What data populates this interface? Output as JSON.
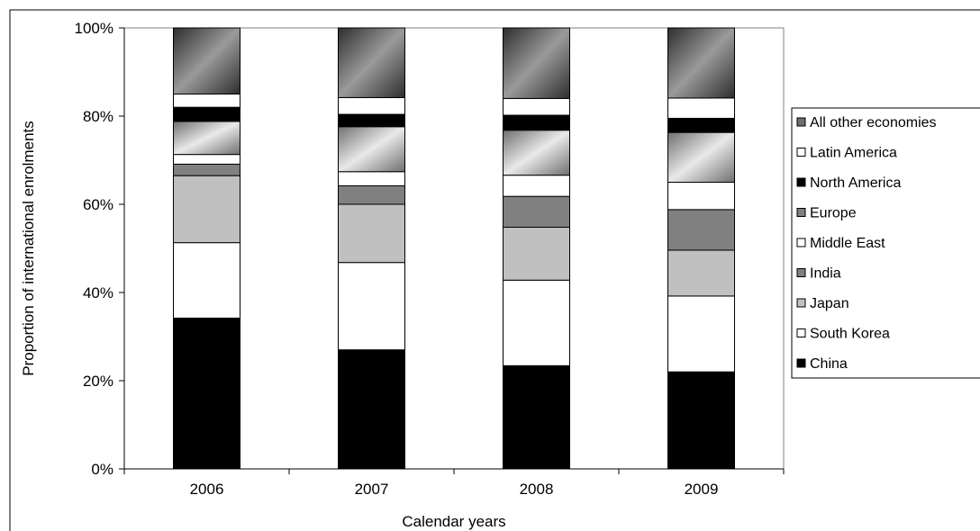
{
  "chart_data": {
    "type": "bar",
    "stacked": true,
    "title": "",
    "xlabel": "Calendar years",
    "ylabel": "Proportion of international enrolments",
    "ylim": [
      0,
      100
    ],
    "yticks": [
      "0%",
      "20%",
      "40%",
      "60%",
      "80%",
      "100%"
    ],
    "grid": false,
    "legend_position": "right",
    "categories": [
      "2006",
      "2007",
      "2008",
      "2009"
    ],
    "series": [
      {
        "name": "China",
        "values": [
          34.2,
          27.0,
          23.4,
          22.0
        ],
        "fill": "solid",
        "color": "#000000"
      },
      {
        "name": "South Korea",
        "values": [
          17.1,
          19.8,
          19.4,
          17.2
        ],
        "fill": "solid",
        "color": "#ffffff"
      },
      {
        "name": "Japan",
        "values": [
          15.2,
          13.2,
          12.0,
          10.4
        ],
        "fill": "solid",
        "color": "#c0c0c0"
      },
      {
        "name": "India",
        "values": [
          2.6,
          4.2,
          7.0,
          9.2
        ],
        "fill": "solid",
        "color": "#808080"
      },
      {
        "name": "Middle East",
        "values": [
          2.2,
          3.2,
          4.8,
          6.2
        ],
        "fill": "solid",
        "color": "#ffffff"
      },
      {
        "name": "Europe",
        "values": [
          7.5,
          10.2,
          10.2,
          11.3
        ],
        "fill": "gradient",
        "color": "#9a9a9a"
      },
      {
        "name": "North America",
        "values": [
          3.2,
          2.8,
          3.4,
          3.2
        ],
        "fill": "solid",
        "color": "#000000"
      },
      {
        "name": "Latin America",
        "values": [
          3.0,
          3.8,
          3.8,
          4.6
        ],
        "fill": "solid",
        "color": "#ffffff"
      },
      {
        "name": "All other economies",
        "values": [
          15.0,
          15.8,
          16.0,
          15.9
        ],
        "fill": "gradient",
        "color": "#555555"
      }
    ],
    "legend_order": [
      "All other economies",
      "Latin America",
      "North America",
      "Europe",
      "Middle East",
      "India",
      "Japan",
      "South Korea",
      "China"
    ],
    "legend_colors": [
      "#6e6e6e",
      "#ffffff",
      "#000000",
      "#808080",
      "#ffffff",
      "#808080",
      "#c0c0c0",
      "#ffffff",
      "#000000"
    ]
  }
}
